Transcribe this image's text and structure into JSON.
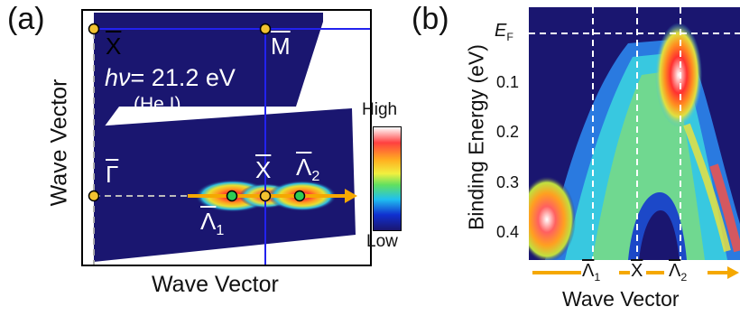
{
  "panel_a": {
    "label": "(a)",
    "x_axis_label": "Wave Vector",
    "y_axis_label": "Wave Vector",
    "photon_energy": {
      "symbol": "hν",
      "value": "= 21.2 eV",
      "source": "(He I)"
    },
    "points": {
      "x_bar_top": "X",
      "m_bar": "M",
      "gamma_bar": "Γ",
      "x_bar_mid": "X",
      "lambda1": "Λ",
      "lambda1_sub": "1",
      "lambda2": "Λ",
      "lambda2_sub": "2"
    },
    "colorbar": {
      "high": "High",
      "low": "Low"
    }
  },
  "panel_b": {
    "label": "(b)",
    "y_axis_label": "Binding Energy (eV)",
    "x_axis_label": "Wave Vector",
    "ef_label": "E",
    "ef_sub": "F",
    "y_ticks": [
      "0.1",
      "0.2",
      "0.3",
      "0.4"
    ],
    "x_marks": {
      "lambda1": "Λ",
      "lambda1_sub": "1",
      "x": "X",
      "lambda2": "Λ",
      "lambda2_sub": "2"
    }
  },
  "colors": {
    "navy": "#1a1670",
    "line_blue": "#2222ee",
    "arrow_orange": "#f5a800",
    "point_yellow": "#f2c230",
    "point_green": "#2ecc55"
  }
}
